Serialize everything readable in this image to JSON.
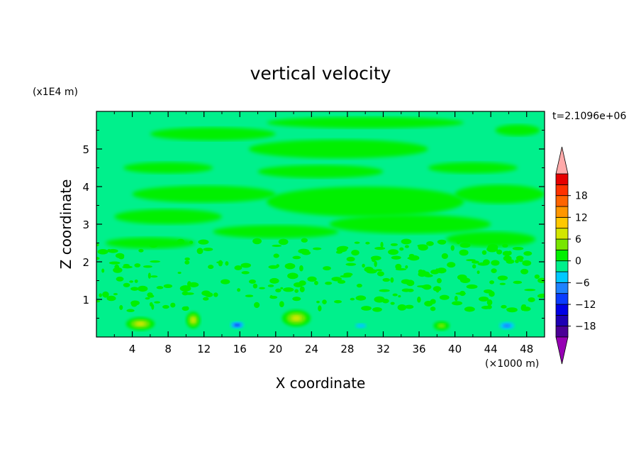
{
  "chart_data": {
    "type": "heatmap",
    "title": "vertical velocity",
    "xlabel": "X coordinate",
    "ylabel": "Z coordinate",
    "x_unit": "(×1000 m)",
    "y_unit": "(x1E4 m)",
    "time_label": "t=2.1096e+06",
    "xlim": [
      0,
      50
    ],
    "ylim": [
      0,
      6
    ],
    "x_ticks": [
      4,
      8,
      12,
      16,
      20,
      24,
      28,
      32,
      36,
      40,
      44,
      48
    ],
    "y_ticks": [
      1,
      2,
      3,
      4,
      5
    ],
    "x_tick_labels": [
      "4",
      "8",
      "12",
      "16",
      "20",
      "24",
      "28",
      "32",
      "36",
      "40",
      "44",
      "48"
    ],
    "y_tick_labels": [
      "1",
      "2",
      "3",
      "4",
      "5"
    ],
    "background_level_color": "#00f08c",
    "colorbar": {
      "levels": [
        -21,
        -18,
        -15,
        -12,
        -9,
        -6,
        -3,
        0,
        3,
        6,
        9,
        12,
        15,
        18,
        21
      ],
      "tick_values": [
        -18,
        -12,
        -6,
        0,
        6,
        12,
        18
      ],
      "tick_labels": [
        "−18",
        "−12",
        "−6",
        "0",
        "6",
        "12",
        "18"
      ],
      "colors": [
        "#4b0096",
        "#1e00b4",
        "#0000e6",
        "#0a3cff",
        "#1e82ff",
        "#00c8ff",
        "#00f08c",
        "#00f000",
        "#78e600",
        "#d2e600",
        "#ffc800",
        "#ff9600",
        "#ff6400",
        "#ff3200",
        "#e60000"
      ],
      "under_color": "#9600b4",
      "over_color": "#ffaaaa"
    },
    "updraft_bands": [
      {
        "x": 13,
        "z": 5.4,
        "w": 14,
        "h": 0.35,
        "value": 1.5
      },
      {
        "x": 30,
        "z": 5.7,
        "w": 22,
        "h": 0.3,
        "value": 1.5
      },
      {
        "x": 27,
        "z": 5.0,
        "w": 20,
        "h": 0.5,
        "value": 1.5
      },
      {
        "x": 8,
        "z": 4.5,
        "w": 10,
        "h": 0.3,
        "value": 1.5
      },
      {
        "x": 25,
        "z": 4.4,
        "w": 14,
        "h": 0.35,
        "value": 1.5
      },
      {
        "x": 42,
        "z": 4.5,
        "w": 10,
        "h": 0.3,
        "value": 1.5
      },
      {
        "x": 47,
        "z": 5.5,
        "w": 5,
        "h": 0.3,
        "value": 1.5
      },
      {
        "x": 12,
        "z": 3.8,
        "w": 16,
        "h": 0.45,
        "value": 1.5
      },
      {
        "x": 30,
        "z": 3.6,
        "w": 22,
        "h": 0.8,
        "value": 1.5
      },
      {
        "x": 45,
        "z": 3.8,
        "w": 10,
        "h": 0.5,
        "value": 1.5
      },
      {
        "x": 8,
        "z": 3.2,
        "w": 12,
        "h": 0.4,
        "value": 1.5
      },
      {
        "x": 35,
        "z": 3.0,
        "w": 18,
        "h": 0.5,
        "value": 1.5
      },
      {
        "x": 20,
        "z": 2.8,
        "w": 14,
        "h": 0.35,
        "value": 1.5
      },
      {
        "x": 6,
        "z": 2.5,
        "w": 10,
        "h": 0.3,
        "value": 1.5
      },
      {
        "x": 44,
        "z": 2.6,
        "w": 10,
        "h": 0.4,
        "value": 1.5
      }
    ],
    "surface_cells": [
      {
        "x": 4.9,
        "z": 0.35,
        "w": 3.2,
        "h": 0.35,
        "value": 5
      },
      {
        "x": 10.8,
        "z": 0.45,
        "w": 1.6,
        "h": 0.45,
        "value": 7
      },
      {
        "x": 15.7,
        "z": 0.32,
        "w": 2.0,
        "h": 0.25,
        "value": -10
      },
      {
        "x": 22.3,
        "z": 0.5,
        "w": 3.2,
        "h": 0.45,
        "value": 6
      },
      {
        "x": 29.5,
        "z": 0.3,
        "w": 2.4,
        "h": 0.25,
        "value": -4
      },
      {
        "x": 38.5,
        "z": 0.3,
        "w": 1.8,
        "h": 0.25,
        "value": 4
      },
      {
        "x": 45.8,
        "z": 0.3,
        "w": 2.5,
        "h": 0.3,
        "value": -7
      }
    ]
  }
}
